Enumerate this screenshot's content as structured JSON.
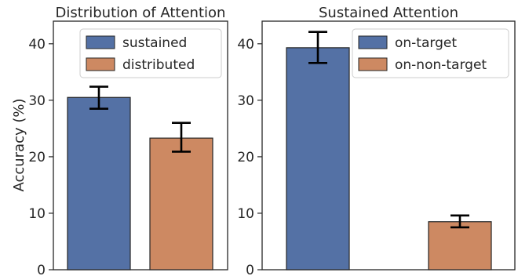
{
  "chart_data": [
    {
      "type": "bar",
      "title": "Distribution of Attention",
      "ylabel": "Accuracy (%)",
      "xlabel": "",
      "ylim": [
        0,
        44
      ],
      "yticks": [
        0,
        10,
        20,
        30,
        40
      ],
      "legend_position": "top-right",
      "series": [
        {
          "name": "sustained",
          "value": 30.5,
          "err_low": 28.5,
          "err_high": 32.4,
          "color": "#5471a5"
        },
        {
          "name": "distributed",
          "value": 23.3,
          "err_low": 20.9,
          "err_high": 26.0,
          "color": "#cd8962"
        }
      ]
    },
    {
      "type": "bar",
      "title": "Sustained Attention",
      "ylabel": "",
      "xlabel": "",
      "ylim": [
        0,
        44
      ],
      "yticks": [
        0,
        10,
        20,
        30,
        40
      ],
      "legend_position": "top-right",
      "series": [
        {
          "name": "on-target",
          "value": 39.3,
          "err_low": 36.6,
          "err_high": 42.1,
          "color": "#5471a5"
        },
        {
          "name": "on-non-target",
          "value": 8.5,
          "err_low": 7.5,
          "err_high": 9.6,
          "color": "#cd8962"
        }
      ]
    }
  ]
}
